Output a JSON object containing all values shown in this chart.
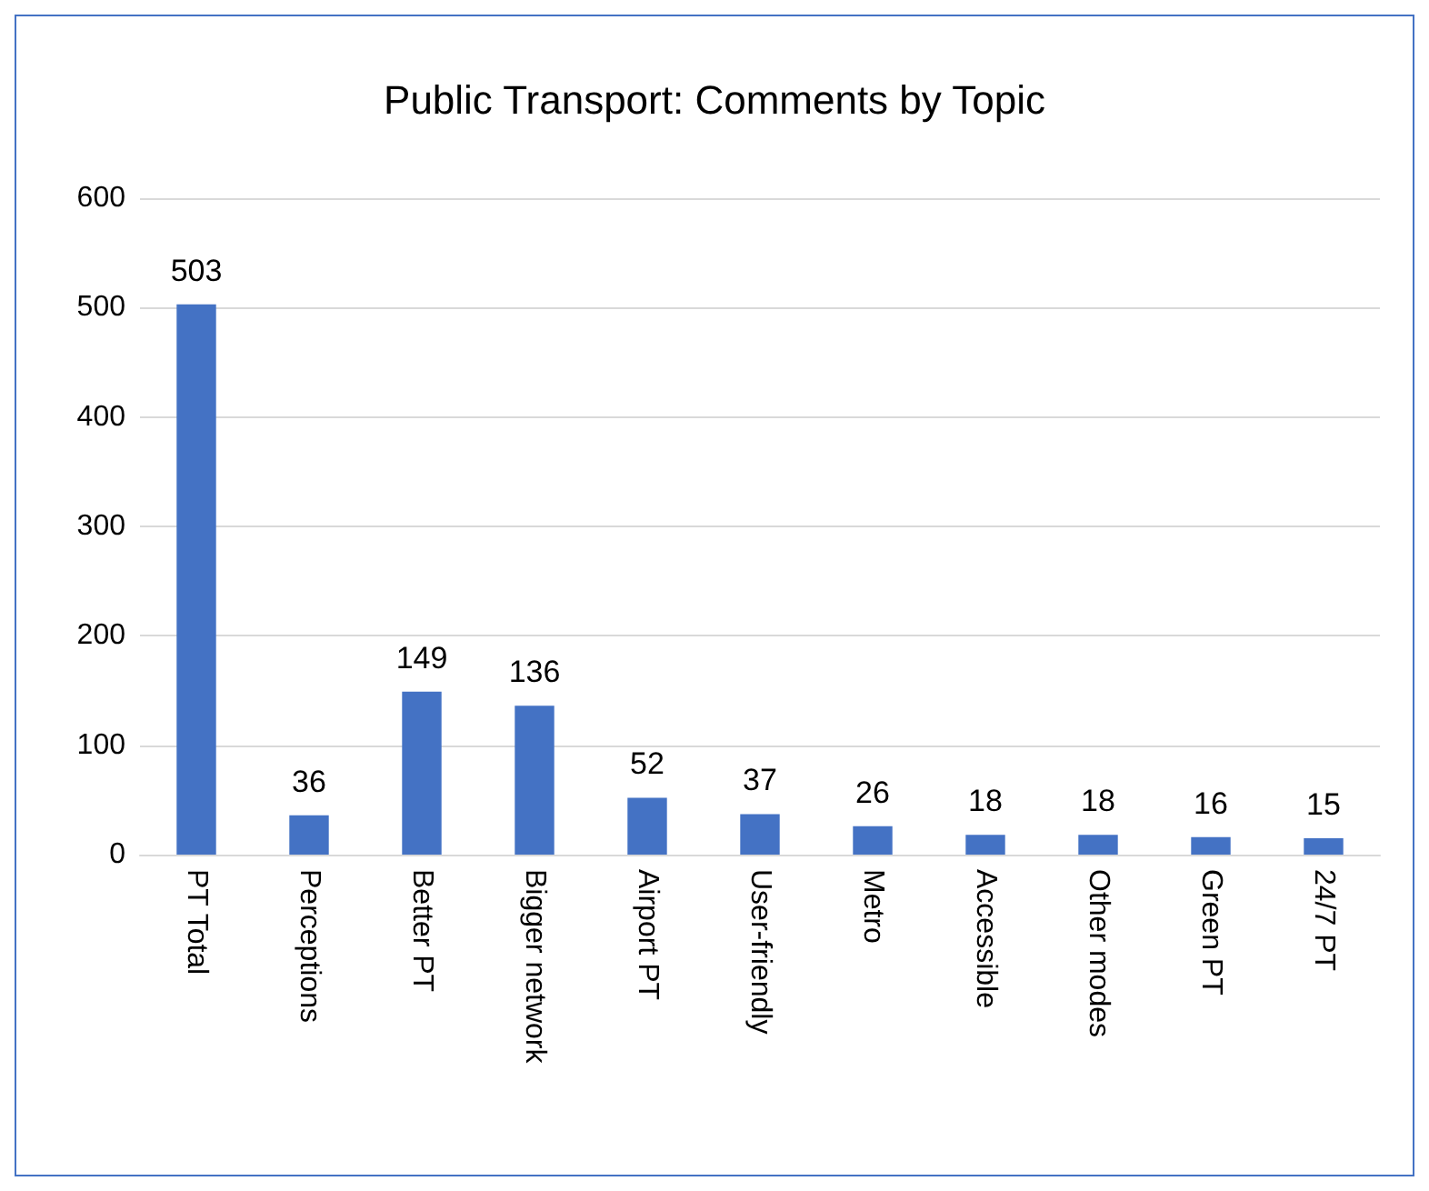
{
  "chart_data": {
    "type": "bar",
    "title": "Public Transport: Comments by Topic",
    "categories": [
      "PT Total",
      "Perceptions",
      "Better PT",
      "Bigger network",
      "Airport PT",
      "User-friendly",
      "Metro",
      "Accessible",
      "Other modes",
      "Green PT",
      "24/7 PT"
    ],
    "values": [
      503,
      36,
      149,
      136,
      52,
      37,
      26,
      18,
      18,
      16,
      15
    ],
    "color": "#4472c4",
    "ylim": [
      0,
      600
    ],
    "yticks": [
      0,
      100,
      200,
      300,
      400,
      500,
      600
    ],
    "grid": "y",
    "data_labels": true
  }
}
